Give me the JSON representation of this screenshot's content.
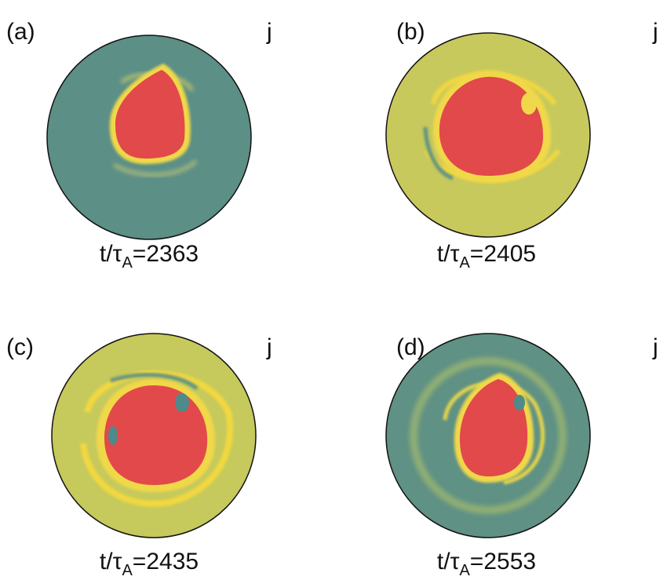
{
  "panels": [
    {
      "label": "(a)",
      "quantity": "j",
      "caption": {
        "lhs": "t/τ",
        "sub": "A",
        "eq": "=",
        "time": 2363
      }
    },
    {
      "label": "(b)",
      "quantity": "j",
      "caption": {
        "lhs": "t/τ",
        "sub": "A",
        "eq": "=",
        "time": 2405
      }
    },
    {
      "label": "(c)",
      "quantity": "j",
      "caption": {
        "lhs": "t/τ",
        "sub": "A",
        "eq": "=",
        "time": 2435
      }
    },
    {
      "label": "(d)",
      "quantity": "j",
      "caption": {
        "lhs": "t/τ",
        "sub": "A",
        "eq": "=",
        "time": 2553
      }
    }
  ]
}
